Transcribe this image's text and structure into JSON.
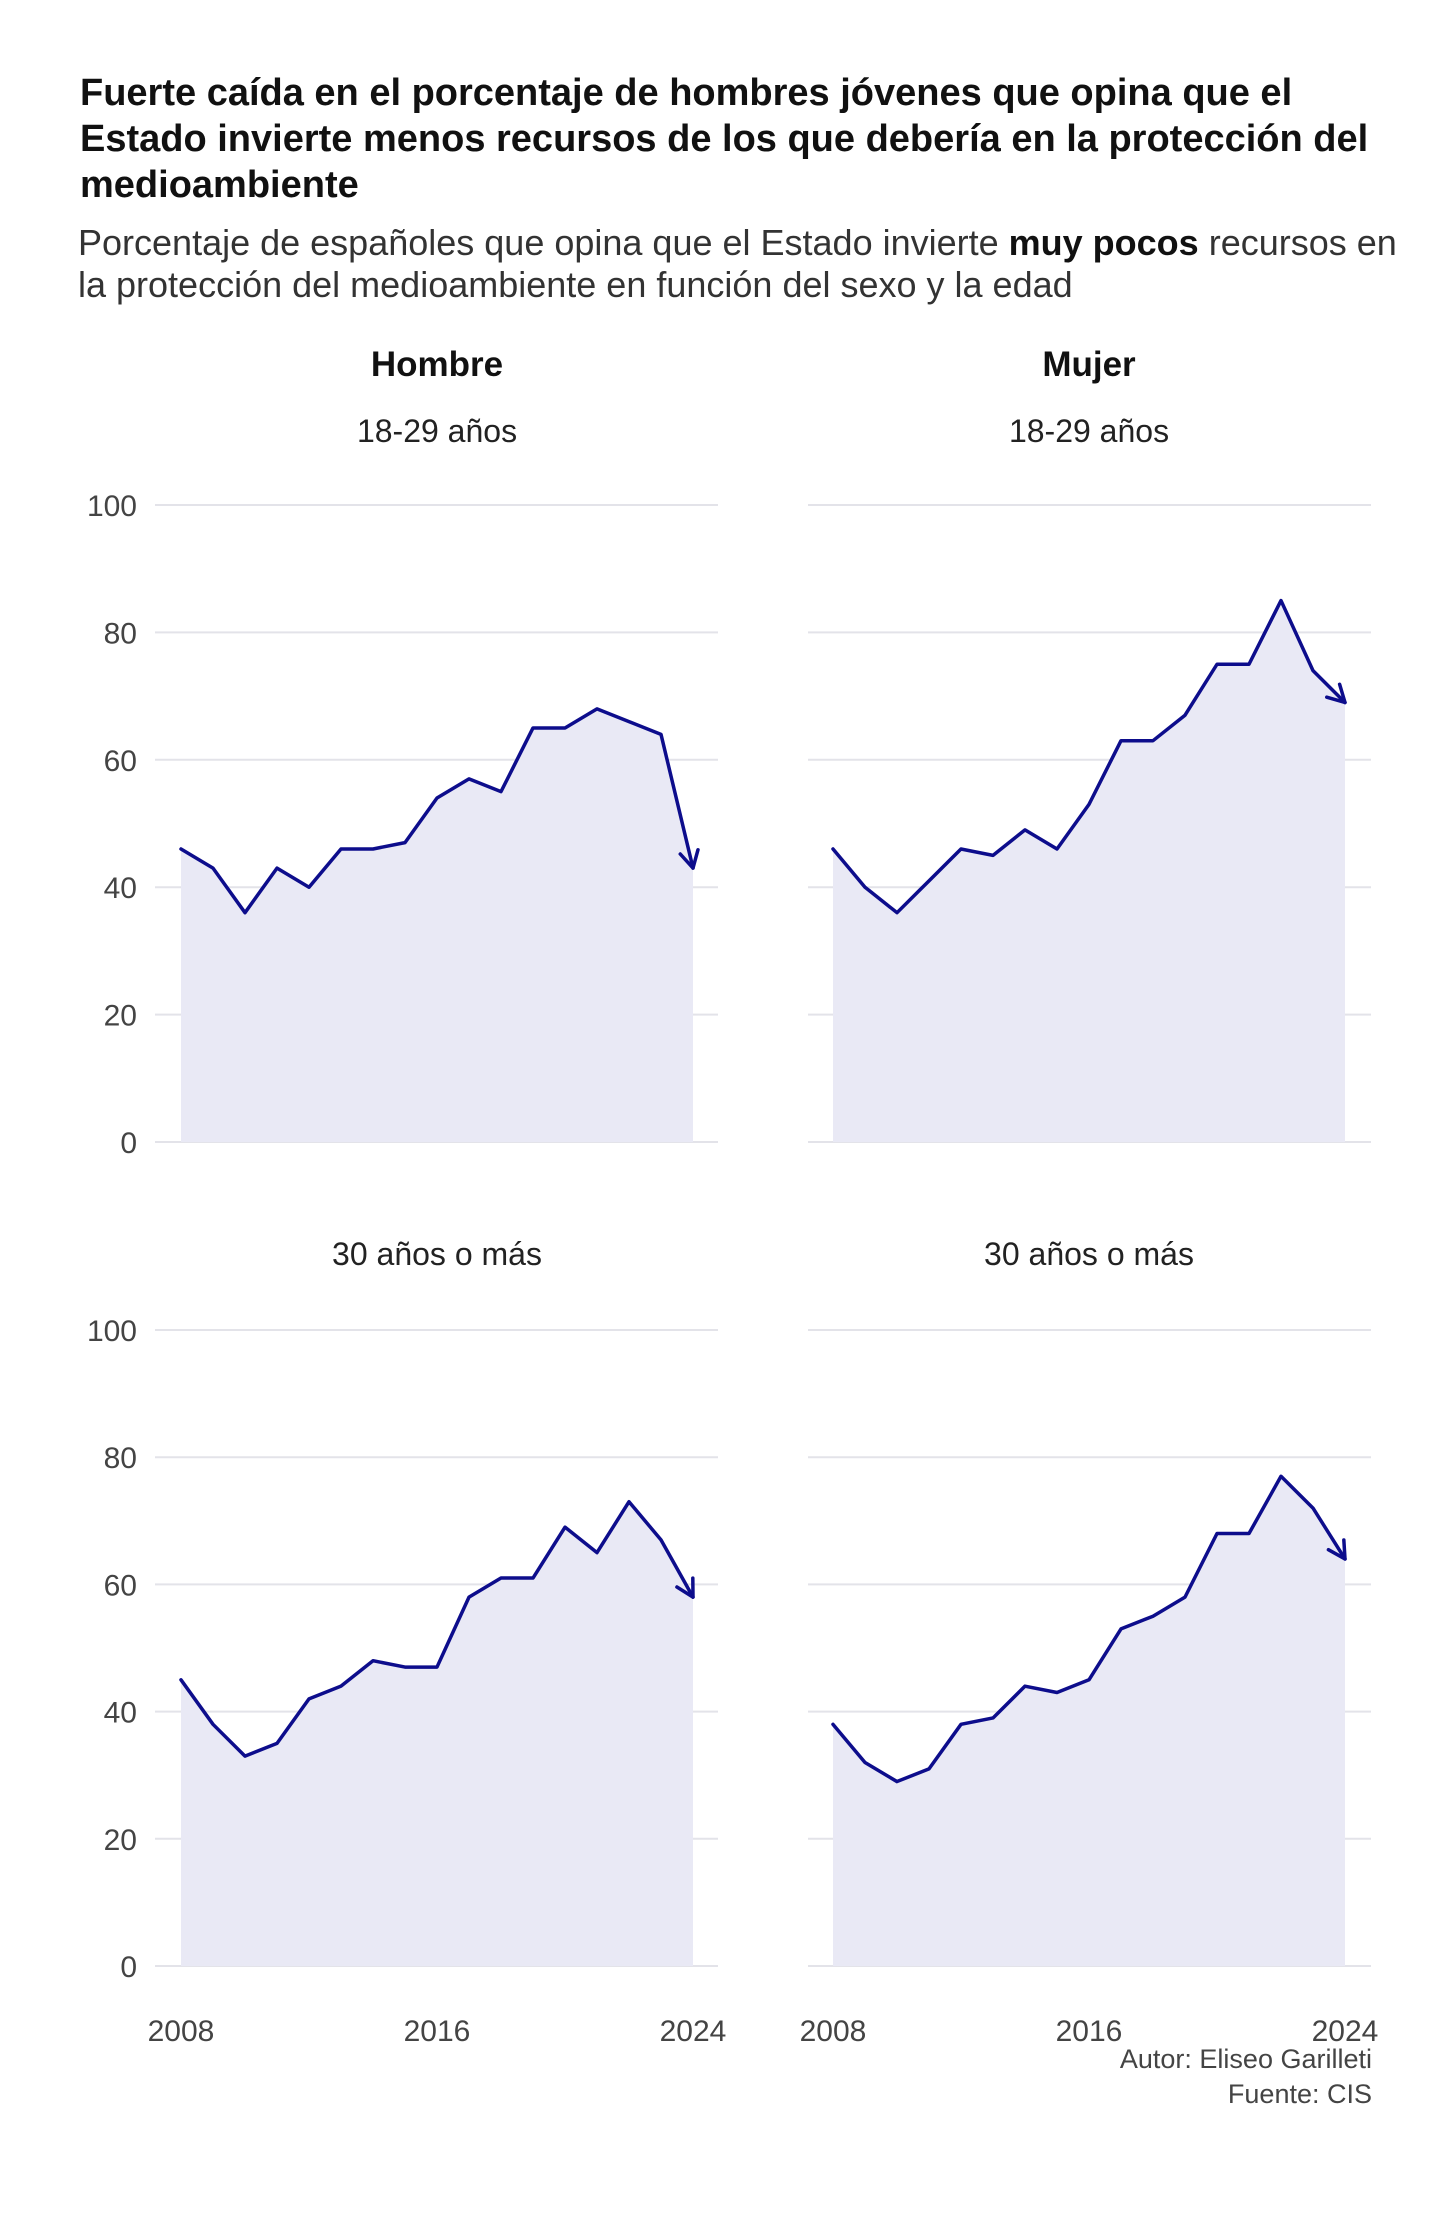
{
  "title": "Fuerte caída en el porcentaje de hombres jóvenes que opina que el Estado invierte menos recursos de los que debería en la protección del medioambiente",
  "subtitle": {
    "before": "Porcentaje de españoles que opina que el Estado invierte ",
    "bold": "muy pocos",
    "after": " recursos en la protección del medioambiente en función del sexo y la edad"
  },
  "columns": [
    "Hombre",
    "Mujer"
  ],
  "credits": {
    "author": "Autor: Eliseo Garilleti",
    "source": "Fuente: CIS"
  },
  "colors": {
    "line": "#0d0d8c",
    "area": "#e9e9f5",
    "grid": "#e3e3e9"
  },
  "chart_data": [
    {
      "type": "area",
      "panel_column": "Hombre",
      "panel_row": "18-29 años",
      "x": [
        2008,
        2009,
        2010,
        2011,
        2012,
        2013,
        2014,
        2015,
        2016,
        2017,
        2018,
        2019,
        2020,
        2021,
        2022,
        2023,
        2024
      ],
      "y": [
        46,
        43,
        36,
        43,
        40,
        46,
        46,
        47,
        54,
        57,
        55,
        65,
        65,
        68,
        66,
        64,
        43
      ],
      "xticks": [
        2008,
        2016,
        2024
      ],
      "yticks": [
        0,
        20,
        40,
        60,
        80,
        100
      ],
      "xlim": [
        2008,
        2024
      ],
      "ylim": [
        0,
        100
      ],
      "grid": true,
      "end_arrow": true
    },
    {
      "type": "area",
      "panel_column": "Mujer",
      "panel_row": "18-29 años",
      "x": [
        2008,
        2009,
        2010,
        2011,
        2012,
        2013,
        2014,
        2015,
        2016,
        2017,
        2018,
        2019,
        2020,
        2021,
        2022,
        2023,
        2024
      ],
      "y": [
        46,
        40,
        36,
        41,
        46,
        45,
        49,
        46,
        53,
        63,
        63,
        67,
        75,
        75,
        85,
        74,
        69
      ],
      "xticks": [
        2008,
        2016,
        2024
      ],
      "yticks": [
        0,
        20,
        40,
        60,
        80,
        100
      ],
      "xlim": [
        2008,
        2024
      ],
      "ylim": [
        0,
        100
      ],
      "grid": true,
      "end_arrow": true
    },
    {
      "type": "area",
      "panel_column": "Hombre",
      "panel_row": "30 años o más",
      "x": [
        2008,
        2009,
        2010,
        2011,
        2012,
        2013,
        2014,
        2015,
        2016,
        2017,
        2018,
        2019,
        2020,
        2021,
        2022,
        2023,
        2024
      ],
      "y": [
        45,
        38,
        33,
        35,
        42,
        44,
        48,
        47,
        47,
        58,
        61,
        61,
        69,
        65,
        73,
        67,
        58
      ],
      "xticks": [
        2008,
        2016,
        2024
      ],
      "yticks": [
        0,
        20,
        40,
        60,
        80,
        100
      ],
      "xlim": [
        2008,
        2024
      ],
      "ylim": [
        0,
        100
      ],
      "grid": true,
      "end_arrow": true
    },
    {
      "type": "area",
      "panel_column": "Mujer",
      "panel_row": "30 años o más",
      "x": [
        2008,
        2009,
        2010,
        2011,
        2012,
        2013,
        2014,
        2015,
        2016,
        2017,
        2018,
        2019,
        2020,
        2021,
        2022,
        2023,
        2024
      ],
      "y": [
        38,
        32,
        29,
        31,
        38,
        39,
        44,
        43,
        45,
        53,
        55,
        58,
        68,
        68,
        77,
        72,
        64
      ],
      "xticks": [
        2008,
        2016,
        2024
      ],
      "yticks": [
        0,
        20,
        40,
        60,
        80,
        100
      ],
      "xlim": [
        2008,
        2024
      ],
      "ylim": [
        0,
        100
      ],
      "grid": true,
      "end_arrow": true
    }
  ]
}
